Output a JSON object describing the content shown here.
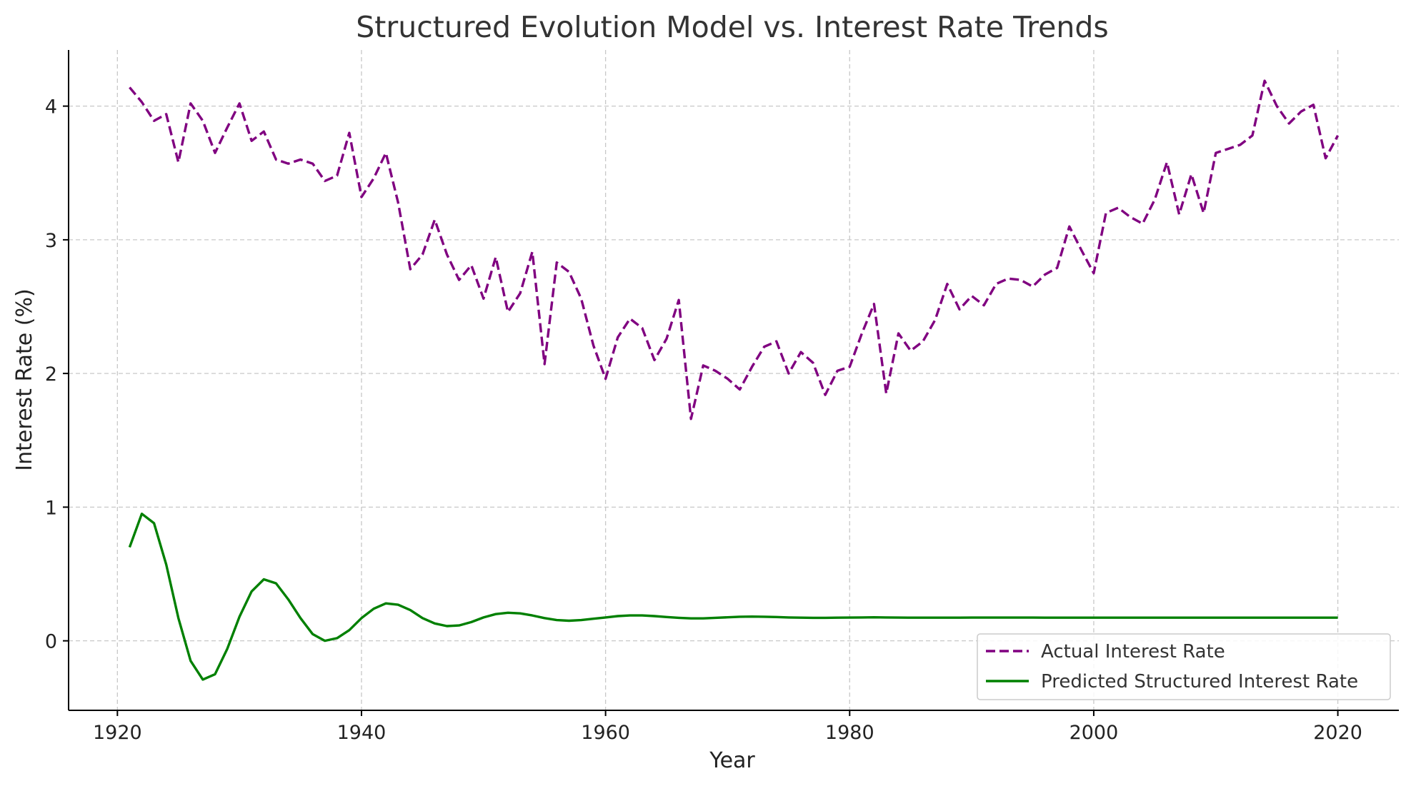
{
  "chart_data": {
    "type": "line",
    "title": "Structured Evolution Model vs. Interest Rate Trends",
    "xlabel": "Year",
    "ylabel": "Interest Rate (%)",
    "xlim": [
      1916,
      2025
    ],
    "ylim": [
      -0.52,
      4.42
    ],
    "xticks": [
      1920,
      1940,
      1960,
      1980,
      2000,
      2020
    ],
    "yticks": [
      0,
      1,
      2,
      3,
      4
    ],
    "grid": true,
    "legend_position": "bottom-right",
    "x": [
      1921,
      1922,
      1923,
      1924,
      1925,
      1926,
      1927,
      1928,
      1929,
      1930,
      1931,
      1932,
      1933,
      1934,
      1935,
      1936,
      1937,
      1938,
      1939,
      1940,
      1941,
      1942,
      1943,
      1944,
      1945,
      1946,
      1947,
      1948,
      1949,
      1950,
      1951,
      1952,
      1953,
      1954,
      1955,
      1956,
      1957,
      1958,
      1959,
      1960,
      1961,
      1962,
      1963,
      1964,
      1965,
      1966,
      1967,
      1968,
      1969,
      1970,
      1971,
      1972,
      1973,
      1974,
      1975,
      1976,
      1977,
      1978,
      1979,
      1980,
      1981,
      1982,
      1983,
      1984,
      1985,
      1986,
      1987,
      1988,
      1989,
      1990,
      1991,
      1992,
      1993,
      1994,
      1995,
      1996,
      1997,
      1998,
      1999,
      2000,
      2001,
      2002,
      2003,
      2004,
      2005,
      2006,
      2007,
      2008,
      2009,
      2010,
      2011,
      2012,
      2013,
      2014,
      2015,
      2016,
      2017,
      2018,
      2019,
      2020
    ],
    "series": [
      {
        "name": "Actual Interest Rate",
        "color": "#800080",
        "style": "dashed",
        "values": [
          4.14,
          4.03,
          3.89,
          3.94,
          3.58,
          4.02,
          3.89,
          3.65,
          3.84,
          4.02,
          3.74,
          3.81,
          3.6,
          3.57,
          3.6,
          3.57,
          3.44,
          3.48,
          3.8,
          3.32,
          3.46,
          3.65,
          3.28,
          2.78,
          2.89,
          3.15,
          2.89,
          2.7,
          2.81,
          2.56,
          2.87,
          2.46,
          2.6,
          2.91,
          2.07,
          2.83,
          2.76,
          2.56,
          2.21,
          1.96,
          2.27,
          2.41,
          2.34,
          2.1,
          2.26,
          2.55,
          1.66,
          2.06,
          2.02,
          1.96,
          1.88,
          2.05,
          2.2,
          2.24,
          2.0,
          2.16,
          2.08,
          1.84,
          2.02,
          2.05,
          2.3,
          2.52,
          1.85,
          2.3,
          2.17,
          2.24,
          2.4,
          2.67,
          2.48,
          2.58,
          2.51,
          2.67,
          2.71,
          2.7,
          2.65,
          2.74,
          2.79,
          3.1,
          2.92,
          2.75,
          3.2,
          3.24,
          3.17,
          3.12,
          3.3,
          3.58,
          3.19,
          3.49,
          3.2,
          3.65,
          3.68,
          3.71,
          3.78,
          4.19,
          4.0,
          3.87,
          3.96,
          4.01,
          3.61,
          3.78
        ]
      },
      {
        "name": "Predicted Structured Interest Rate",
        "color": "#008000",
        "style": "solid",
        "values": [
          0.7,
          0.95,
          0.88,
          0.57,
          0.17,
          -0.15,
          -0.29,
          -0.25,
          -0.06,
          0.18,
          0.37,
          0.46,
          0.43,
          0.31,
          0.17,
          0.05,
          0.0,
          0.02,
          0.08,
          0.17,
          0.24,
          0.28,
          0.27,
          0.23,
          0.17,
          0.13,
          0.11,
          0.115,
          0.14,
          0.175,
          0.2,
          0.21,
          0.205,
          0.19,
          0.17,
          0.155,
          0.15,
          0.155,
          0.165,
          0.175,
          0.185,
          0.19,
          0.19,
          0.185,
          0.178,
          0.172,
          0.168,
          0.168,
          0.172,
          0.176,
          0.18,
          0.181,
          0.18,
          0.178,
          0.175,
          0.173,
          0.172,
          0.172,
          0.173,
          0.174,
          0.175,
          0.176,
          0.175,
          0.174,
          0.173,
          0.173,
          0.173,
          0.173,
          0.173,
          0.174,
          0.174,
          0.174,
          0.174,
          0.174,
          0.174,
          0.173,
          0.173,
          0.173,
          0.173,
          0.173,
          0.173,
          0.173,
          0.173,
          0.173,
          0.173,
          0.173,
          0.173,
          0.173,
          0.173,
          0.173,
          0.173,
          0.173,
          0.173,
          0.173,
          0.173,
          0.173,
          0.173,
          0.173,
          0.173,
          0.173
        ]
      }
    ]
  }
}
